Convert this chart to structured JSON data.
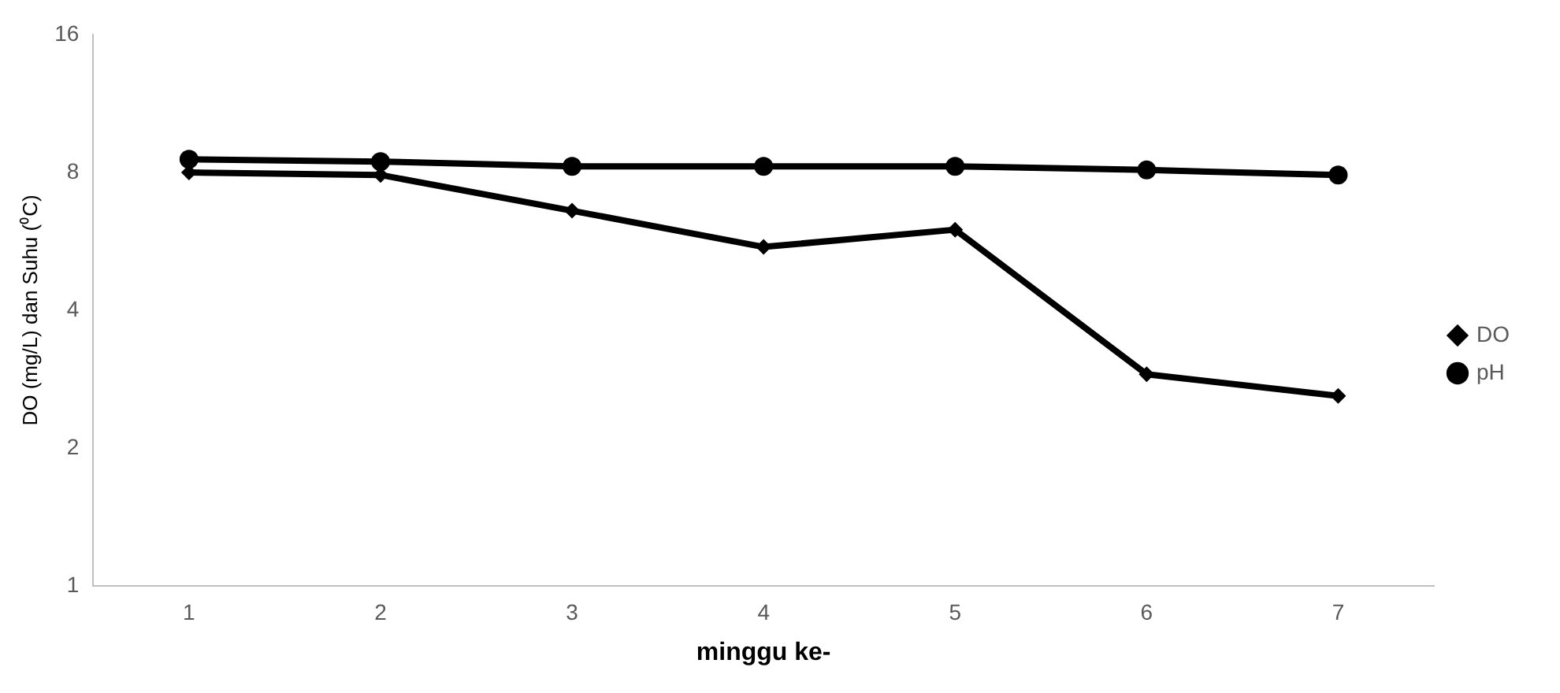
{
  "chart_data": {
    "type": "line",
    "xlabel": "minggu ke-",
    "ylabel": "DO (mg/L) dan Suhu (⁰C)",
    "categories": [
      "1",
      "2",
      "3",
      "4",
      "5",
      "6",
      "7"
    ],
    "series": [
      {
        "name": "DO",
        "color": "#000000",
        "marker": "diamond",
        "values": [
          8.0,
          7.9,
          6.6,
          5.5,
          6.0,
          2.9,
          2.6
        ]
      },
      {
        "name": "pH",
        "color": "#000000",
        "marker": "circle",
        "values": [
          8.55,
          8.45,
          8.25,
          8.25,
          8.25,
          8.1,
          7.9
        ]
      }
    ],
    "log": "y",
    "ylim": [
      1,
      16
    ],
    "yticks": [
      1,
      2,
      4,
      8,
      16
    ],
    "grid": false,
    "legend": "right",
    "line_style": "solid"
  }
}
